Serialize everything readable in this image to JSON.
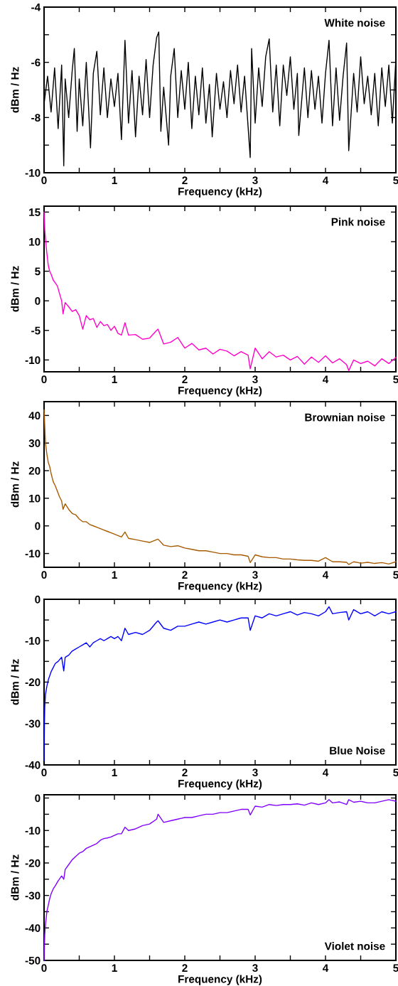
{
  "chart_data": [
    {
      "type": "line",
      "xlabel": "Frequency (kHz)",
      "ylabel": "dBm / Hz",
      "annotations": [
        "White noise"
      ],
      "xlim": [
        0,
        5
      ],
      "ylim": [
        -10,
        -4
      ],
      "xticks": [
        0,
        {
          "value": 0.5,
          "label": null
        },
        1,
        {
          "value": 1.5,
          "label": null
        },
        2,
        {
          "value": 2.5,
          "label": null
        },
        3,
        {
          "value": 3.5,
          "label": null
        },
        4,
        {
          "value": 4.5,
          "label": null
        },
        5
      ],
      "yticks": [
        -10,
        {
          "value": -9,
          "label": null
        },
        -8,
        {
          "value": -7,
          "label": null
        },
        -6,
        {
          "value": -5,
          "label": null
        },
        -4
      ],
      "series": [
        {
          "color": "#000000",
          "x": [
            0,
            0.05,
            0.1,
            0.15,
            0.2,
            0.25,
            0.28,
            0.3,
            0.35,
            0.4,
            0.43,
            0.47,
            0.5,
            0.55,
            0.6,
            0.63,
            0.66,
            0.7,
            0.75,
            0.8,
            0.85,
            0.9,
            0.95,
            1,
            1.05,
            1.1,
            1.15,
            1.2,
            1.25,
            1.3,
            1.35,
            1.4,
            1.45,
            1.5,
            1.55,
            1.6,
            1.63,
            1.66,
            1.7,
            1.77,
            1.8,
            1.85,
            1.9,
            1.95,
            2,
            2.05,
            2.1,
            2.15,
            2.2,
            2.25,
            2.3,
            2.35,
            2.39,
            2.45,
            2.5,
            2.55,
            2.6,
            2.65,
            2.7,
            2.75,
            2.8,
            2.85,
            2.93,
            2.95,
            3,
            3.05,
            3.1,
            3.15,
            3.2,
            3.25,
            3.3,
            3.35,
            3.4,
            3.45,
            3.5,
            3.55,
            3.6,
            3.62,
            3.7,
            3.75,
            3.8,
            3.85,
            3.9,
            3.95,
            4,
            4.05,
            4.1,
            4.15,
            4.2,
            4.25,
            4.3,
            4.33,
            4.4,
            4.45,
            4.5,
            4.55,
            4.6,
            4.65,
            4.7,
            4.75,
            4.8,
            4.85,
            4.9,
            4.95,
            5
          ],
          "values": [
            -7.5,
            -6.5,
            -7.8,
            -6.2,
            -8.4,
            -6.1,
            -9.75,
            -6.6,
            -8,
            -6.3,
            -5.5,
            -8.5,
            -6.6,
            -8.3,
            -6,
            -7.5,
            -9.1,
            -6.4,
            -5.6,
            -7.9,
            -6.2,
            -8,
            -6.6,
            -7.6,
            -6.4,
            -8.8,
            -5.2,
            -8.2,
            -6.3,
            -8.7,
            -6.5,
            -7.9,
            -5.9,
            -8,
            -6.1,
            -5.1,
            -4.9,
            -8.5,
            -6.9,
            -9,
            -6.5,
            -5.5,
            -8,
            -6.3,
            -7.7,
            -6,
            -8.4,
            -6.5,
            -7.9,
            -6.2,
            -8.2,
            -6.8,
            -8.7,
            -6.4,
            -7.7,
            -6.7,
            -8,
            -6.3,
            -7.5,
            -6.1,
            -7.8,
            -6.5,
            -9.45,
            -5.5,
            -8.2,
            -6.2,
            -7.6,
            -5.8,
            -5.15,
            -7.8,
            -6.1,
            -8.3,
            -6.1,
            -7.2,
            -5.8,
            -7.7,
            -6.4,
            -8.65,
            -6.2,
            -8,
            -6.3,
            -7.7,
            -6.5,
            -8.2,
            -6.4,
            -5.2,
            -8.3,
            -6.2,
            -8.1,
            -6.5,
            -5.3,
            -9.2,
            -6.4,
            -7.8,
            -5.8,
            -7.5,
            -6.5,
            -7.9,
            -6.4,
            -8.3,
            -6.2,
            -7.6,
            -6.1,
            -8.2,
            -5.9
          ]
        }
      ]
    },
    {
      "type": "line",
      "xlabel": "Frequency (kHz)",
      "ylabel": "dBm / Hz",
      "annotations": [
        "Pink noise"
      ],
      "xlim": [
        0,
        5
      ],
      "ylim": [
        -12,
        16
      ],
      "xticks": [
        0,
        {
          "value": 0.5,
          "label": null
        },
        1,
        {
          "value": 1.5,
          "label": null
        },
        2,
        {
          "value": 2.5,
          "label": null
        },
        3,
        {
          "value": 3.5,
          "label": null
        },
        4,
        {
          "value": 4.5,
          "label": null
        },
        5
      ],
      "yticks": [
        -10,
        -5,
        0,
        5,
        10,
        15
      ],
      "series": [
        {
          "color": "#ff00cc",
          "x": [
            0,
            0.01,
            0.02,
            0.04,
            0.06,
            0.08,
            0.1,
            0.13,
            0.16,
            0.19,
            0.22,
            0.25,
            0.27,
            0.3,
            0.35,
            0.4,
            0.45,
            0.5,
            0.55,
            0.6,
            0.65,
            0.7,
            0.75,
            0.8,
            0.85,
            0.9,
            0.95,
            1,
            1.05,
            1.1,
            1.15,
            1.2,
            1.3,
            1.4,
            1.5,
            1.6,
            1.62,
            1.7,
            1.8,
            1.9,
            2,
            2.1,
            2.2,
            2.3,
            2.4,
            2.5,
            2.6,
            2.7,
            2.8,
            2.9,
            2.93,
            3,
            3.1,
            3.2,
            3.3,
            3.4,
            3.5,
            3.6,
            3.7,
            3.8,
            3.9,
            4,
            4.1,
            4.2,
            4.3,
            4.33,
            4.4,
            4.5,
            4.6,
            4.7,
            4.8,
            4.9,
            5
          ],
          "values": [
            15,
            12,
            10.5,
            8,
            6,
            5,
            4.5,
            3.5,
            3,
            2.5,
            1.2,
            0,
            -2.2,
            -0.3,
            -1,
            -1.8,
            -1.5,
            -2.5,
            -4.8,
            -2.5,
            -3.2,
            -3,
            -4.5,
            -3.5,
            -4.2,
            -4,
            -5,
            -4.3,
            -5.5,
            -5.8,
            -3.7,
            -5.8,
            -5.7,
            -6.5,
            -6.3,
            -5,
            -4.8,
            -7.3,
            -7,
            -6.2,
            -8,
            -7.2,
            -8.3,
            -8,
            -9,
            -8.2,
            -8.5,
            -9.3,
            -8.6,
            -9.2,
            -11.5,
            -8,
            -9.8,
            -8.6,
            -9.5,
            -9.2,
            -10,
            -9.4,
            -10.7,
            -9.5,
            -10.4,
            -9.3,
            -10.5,
            -9.8,
            -10.8,
            -11.8,
            -10,
            -10.6,
            -10.2,
            -11,
            -9.8,
            -10.6,
            -9.6
          ]
        }
      ]
    },
    {
      "type": "line",
      "xlabel": "Frequency (kHz)",
      "ylabel": "dBm / Hz",
      "annotations": [
        "Brownian noise"
      ],
      "xlim": [
        0,
        5
      ],
      "ylim": [
        -15,
        45
      ],
      "xticks": [
        0,
        {
          "value": 0.5,
          "label": null
        },
        1,
        {
          "value": 1.5,
          "label": null
        },
        2,
        {
          "value": 2.5,
          "label": null
        },
        3,
        {
          "value": 3.5,
          "label": null
        },
        4,
        {
          "value": 4.5,
          "label": null
        },
        5
      ],
      "yticks": [
        -10,
        0,
        10,
        20,
        30,
        40
      ],
      "series": [
        {
          "color": "#a85a00",
          "x": [
            0,
            0.01,
            0.02,
            0.04,
            0.06,
            0.08,
            0.1,
            0.13,
            0.16,
            0.19,
            0.22,
            0.25,
            0.27,
            0.3,
            0.35,
            0.4,
            0.45,
            0.5,
            0.55,
            0.6,
            0.65,
            0.7,
            0.75,
            0.8,
            0.85,
            0.9,
            0.95,
            1,
            1.05,
            1.1,
            1.15,
            1.2,
            1.3,
            1.4,
            1.5,
            1.6,
            1.62,
            1.7,
            1.8,
            1.9,
            2,
            2.1,
            2.2,
            2.3,
            2.4,
            2.5,
            2.6,
            2.7,
            2.8,
            2.9,
            2.93,
            3,
            3.1,
            3.2,
            3.3,
            3.4,
            3.5,
            3.6,
            3.7,
            3.8,
            3.9,
            4,
            4.1,
            4.2,
            4.3,
            4.33,
            4.4,
            4.5,
            4.6,
            4.7,
            4.8,
            4.9,
            5
          ],
          "values": [
            42,
            36,
            30,
            26,
            23,
            21.5,
            19,
            16,
            14.5,
            12.5,
            10.5,
            9,
            6,
            8,
            6,
            4.5,
            4,
            2.5,
            1.5,
            1.5,
            0.5,
            0,
            -0.5,
            -1,
            -1.5,
            -2,
            -2.5,
            -3,
            -3.5,
            -4,
            -2.2,
            -4.5,
            -5,
            -5.5,
            -6,
            -5,
            -4.8,
            -7,
            -7.5,
            -7.2,
            -8,
            -8.5,
            -9,
            -9,
            -9.5,
            -10,
            -10,
            -10.5,
            -10.5,
            -11,
            -13.3,
            -10.5,
            -11.2,
            -11.5,
            -11.5,
            -12,
            -12,
            -12.3,
            -12.5,
            -12.5,
            -12.8,
            -11.5,
            -13,
            -13,
            -13.2,
            -14,
            -13,
            -13.5,
            -13.2,
            -13.6,
            -13.3,
            -13.8,
            -13
          ]
        }
      ]
    },
    {
      "type": "line",
      "xlabel": "Frequency (kHz)",
      "ylabel": "dBm / Hz",
      "annotations": [
        "Blue Noise"
      ],
      "xlim": [
        0,
        5
      ],
      "ylim": [
        -40,
        0
      ],
      "xticks": [
        0,
        {
          "value": 0.5,
          "label": null
        },
        1,
        {
          "value": 1.5,
          "label": null
        },
        2,
        {
          "value": 2.5,
          "label": null
        },
        3,
        {
          "value": 3.5,
          "label": null
        },
        4,
        {
          "value": 4.5,
          "label": null
        },
        5
      ],
      "yticks": [
        -40,
        {
          "value": -35,
          "label": null
        },
        -30,
        {
          "value": -25,
          "label": null
        },
        -20,
        {
          "value": -15,
          "label": null
        },
        -10,
        {
          "value": -5,
          "label": null
        },
        0
      ],
      "series": [
        {
          "color": "#0000ff",
          "x": [
            0,
            0.005,
            0.01,
            0.02,
            0.04,
            0.06,
            0.08,
            0.1,
            0.13,
            0.16,
            0.2,
            0.25,
            0.28,
            0.3,
            0.35,
            0.4,
            0.45,
            0.5,
            0.55,
            0.6,
            0.65,
            0.7,
            0.75,
            0.8,
            0.85,
            0.9,
            0.95,
            1,
            1.05,
            1.1,
            1.15,
            1.2,
            1.3,
            1.4,
            1.5,
            1.6,
            1.62,
            1.7,
            1.8,
            1.9,
            2,
            2.1,
            2.2,
            2.3,
            2.4,
            2.5,
            2.6,
            2.7,
            2.8,
            2.9,
            2.93,
            3,
            3.1,
            3.2,
            3.3,
            3.4,
            3.5,
            3.6,
            3.7,
            3.8,
            3.9,
            4,
            4.05,
            4.1,
            4.2,
            4.3,
            4.33,
            4.4,
            4.5,
            4.6,
            4.7,
            4.8,
            4.9,
            5
          ],
          "values": [
            -39,
            -30,
            -26,
            -23,
            -21,
            -19.5,
            -18.5,
            -17.5,
            -16.5,
            -15.5,
            -15,
            -14,
            -17.3,
            -14,
            -13.5,
            -12.5,
            -12,
            -11.5,
            -11,
            -10.5,
            -11.5,
            -10.5,
            -10,
            -9.5,
            -10,
            -9.5,
            -9,
            -9.5,
            -9,
            -10,
            -7,
            -8.5,
            -8,
            -8.5,
            -7.5,
            -5.5,
            -5.2,
            -7,
            -7.5,
            -6.5,
            -6.5,
            -6,
            -5.5,
            -6,
            -5.5,
            -5,
            -5.5,
            -5,
            -4.5,
            -4.5,
            -7.5,
            -4,
            -4.5,
            -3.5,
            -4,
            -3.5,
            -3,
            -3.8,
            -3.2,
            -3.5,
            -4,
            -3,
            -1.8,
            -3.5,
            -3.2,
            -3,
            -5,
            -2.5,
            -3.5,
            -3,
            -4,
            -3,
            -3.5,
            -3
          ]
        }
      ]
    },
    {
      "type": "line",
      "xlabel": "Frequency (kHz)",
      "ylabel": "dBm / Hz",
      "annotations": [
        "Violet noise"
      ],
      "xlim": [
        0,
        5
      ],
      "ylim": [
        -50,
        1
      ],
      "xticks": [
        0,
        {
          "value": 0.5,
          "label": null
        },
        1,
        {
          "value": 1.5,
          "label": null
        },
        2,
        {
          "value": 2.5,
          "label": null
        },
        3,
        {
          "value": 3.5,
          "label": null
        },
        4,
        {
          "value": 4.5,
          "label": null
        },
        5
      ],
      "yticks": [
        -50,
        {
          "value": -45,
          "label": null
        },
        -40,
        {
          "value": -35,
          "label": null
        },
        -30,
        {
          "value": -25,
          "label": null
        },
        -20,
        {
          "value": -15,
          "label": null
        },
        -10,
        {
          "value": -5,
          "label": null
        },
        0
      ],
      "series": [
        {
          "color": "#8000ff",
          "x": [
            0,
            0.005,
            0.01,
            0.02,
            0.04,
            0.06,
            0.08,
            0.1,
            0.13,
            0.16,
            0.2,
            0.25,
            0.28,
            0.3,
            0.35,
            0.4,
            0.45,
            0.5,
            0.55,
            0.6,
            0.65,
            0.7,
            0.75,
            0.8,
            0.85,
            0.9,
            0.95,
            1,
            1.05,
            1.1,
            1.15,
            1.2,
            1.3,
            1.4,
            1.5,
            1.6,
            1.62,
            1.7,
            1.8,
            1.9,
            2,
            2.1,
            2.2,
            2.3,
            2.4,
            2.5,
            2.6,
            2.7,
            2.8,
            2.9,
            2.93,
            3,
            3.1,
            3.2,
            3.3,
            3.4,
            3.5,
            3.6,
            3.7,
            3.8,
            3.9,
            4,
            4.05,
            4.1,
            4.2,
            4.3,
            4.33,
            4.4,
            4.5,
            4.6,
            4.7,
            4.8,
            4.9,
            5
          ],
          "values": [
            -50,
            -45,
            -42,
            -39,
            -35,
            -33,
            -31,
            -29.5,
            -28,
            -27,
            -25.5,
            -24,
            -25,
            -22,
            -20.5,
            -19,
            -18,
            -17,
            -16.5,
            -15.5,
            -15,
            -14.5,
            -14,
            -13,
            -12.5,
            -12.3,
            -12,
            -11.5,
            -11,
            -11,
            -9,
            -10,
            -9.5,
            -8.5,
            -8,
            -6.5,
            -5,
            -7.5,
            -7,
            -6.5,
            -6,
            -6,
            -5.5,
            -5,
            -5,
            -4.5,
            -4.5,
            -4,
            -3.5,
            -3.5,
            -5.2,
            -2.5,
            -2.8,
            -2,
            -2.3,
            -2,
            -2,
            -1.8,
            -2.2,
            -1.5,
            -2,
            -1.5,
            -0.5,
            -1.5,
            -1.2,
            -2,
            -0.5,
            -1.3,
            -1,
            -1.5,
            -1.5,
            -1,
            -0.5,
            -1
          ]
        }
      ]
    }
  ]
}
